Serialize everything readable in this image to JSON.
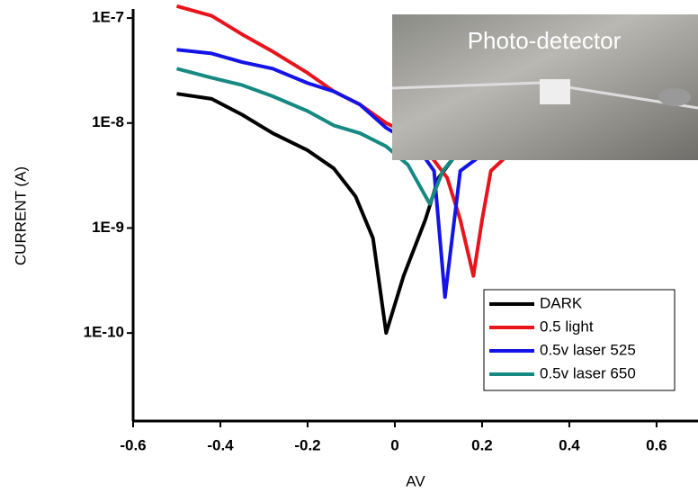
{
  "chart_data": {
    "type": "line",
    "x_label": "AV",
    "y_label": "CURRENT (A)",
    "inset_label": "Photo-detector",
    "log_y": true,
    "xlim": [
      -0.6,
      0.695
    ],
    "xticks": [
      -0.6,
      -0.4,
      -0.2,
      0,
      0.2,
      0.4,
      0.6
    ],
    "ylim": [
      1.45e-11,
      1.22e-07
    ],
    "yticks": [
      {
        "value": 1e-10,
        "label": "1E-10"
      },
      {
        "value": 1e-09,
        "label": "1E-9"
      },
      {
        "value": 1e-08,
        "label": "1E-8"
      },
      {
        "value": 1e-07,
        "label": "1E-7"
      }
    ],
    "series": [
      {
        "name": "DARK",
        "color": "#000000",
        "x": [
          -0.5,
          -0.42,
          -0.35,
          -0.28,
          -0.2,
          -0.14,
          -0.09,
          -0.05,
          -0.02,
          0.02,
          0.07,
          0.1,
          0.14,
          0.16
        ],
        "values": [
          1.9e-08,
          1.7e-08,
          1.2e-08,
          8e-09,
          5.5e-09,
          3.7e-09,
          2e-09,
          8e-10,
          1e-10,
          3.5e-10,
          1.2e-09,
          3e-09,
          5e-09,
          6e-09
        ]
      },
      {
        "name": "0.5 light",
        "color": "#e8141c",
        "x": [
          -0.5,
          -0.42,
          -0.35,
          -0.28,
          -0.2,
          -0.14,
          -0.08,
          -0.02,
          0.03,
          0.08,
          0.12,
          0.15,
          0.18,
          0.2,
          0.22,
          0.26
        ],
        "values": [
          1.3e-07,
          1.05e-07,
          7e-08,
          4.8e-08,
          3e-08,
          2e-08,
          1.5e-08,
          1e-08,
          8e-09,
          5e-09,
          3e-09,
          1.2e-09,
          3.5e-10,
          1.2e-09,
          3.5e-09,
          5e-09
        ]
      },
      {
        "name": "0.5v laser 525",
        "color": "#1414e6",
        "x": [
          -0.5,
          -0.42,
          -0.35,
          -0.28,
          -0.2,
          -0.14,
          -0.08,
          -0.02,
          0.05,
          0.09,
          0.115,
          0.15,
          0.2
        ],
        "values": [
          5e-08,
          4.6e-08,
          3.8e-08,
          3.3e-08,
          2.4e-08,
          2e-08,
          1.5e-08,
          9e-09,
          6e-09,
          3.5e-09,
          2.2e-10,
          3.5e-09,
          5e-09
        ]
      },
      {
        "name": "0.5v laser 650",
        "color": "#168a82",
        "x": [
          -0.5,
          -0.42,
          -0.35,
          -0.28,
          -0.2,
          -0.14,
          -0.08,
          -0.02,
          0.03,
          0.08,
          0.11,
          0.14
        ],
        "values": [
          3.3e-08,
          2.7e-08,
          2.3e-08,
          1.8e-08,
          1.3e-08,
          9.5e-09,
          8e-09,
          6e-09,
          4e-09,
          1.7e-09,
          3.5e-09,
          5e-09
        ]
      }
    ]
  }
}
